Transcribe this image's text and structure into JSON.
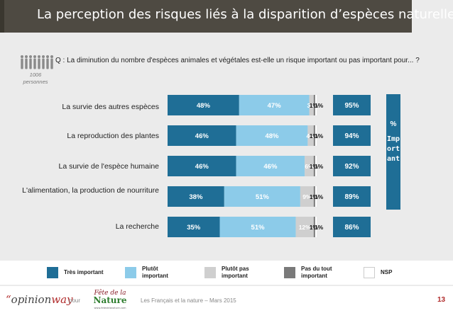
{
  "title": "La perception des risques liés à la disparition d’espèces naturelles",
  "question": "Q : La diminution du nombre d'espèces animales et végétales est-elle un risque important ou pas important pour... ?",
  "sample": {
    "count": "1006",
    "unit": "personnes"
  },
  "important_label": {
    "sign": "%",
    "word": "Important"
  },
  "chart_data": {
    "type": "bar",
    "stacked": true,
    "orientation": "horizontal",
    "xlim": [
      0,
      100
    ],
    "categories": [
      "La survie des autres espèces",
      "La reproduction des plantes",
      "La survie de l'espèce humaine",
      "L'alimentation, la production de nourriture",
      "La recherche"
    ],
    "series": [
      {
        "name": "Très important",
        "values": [
          48,
          46,
          46,
          38,
          35
        ],
        "labels": [
          "48%",
          "46%",
          "46%",
          "38%",
          "35%"
        ],
        "color": "#1f6e96"
      },
      {
        "name": "Plutôt important",
        "values": [
          47,
          48,
          46,
          51,
          51
        ],
        "labels": [
          "47%",
          "48%",
          "46%",
          "51%",
          "51%"
        ],
        "color": "#8ccbe9"
      },
      {
        "name": "Plutôt pas important",
        "values": [
          3,
          4,
          6,
          9,
          12
        ],
        "labels": [
          "3%",
          "4%",
          "6%",
          "9%",
          "12%"
        ],
        "color": "#cfcfcf"
      },
      {
        "name": "Pas du tout important",
        "values": [
          1,
          1,
          1,
          1,
          1
        ],
        "labels": [
          "1%",
          "1%",
          "1%",
          "1%",
          "1%"
        ],
        "color": "#7a7a7a"
      },
      {
        "name": "NSP",
        "values": [
          1,
          1,
          1,
          1,
          1
        ],
        "labels": [
          "1%",
          "1%",
          "1%",
          "1%",
          "1%"
        ],
        "color": "#ffffff"
      }
    ],
    "totals": {
      "name": "Important",
      "values": [
        95,
        94,
        92,
        89,
        86
      ],
      "labels": [
        "95%",
        "94%",
        "92%",
        "89%",
        "86%"
      ],
      "color": "#1f6e96"
    }
  },
  "legend": [
    {
      "line1": "Très important",
      "line2": "",
      "color": "#1f6e96"
    },
    {
      "line1": "Plutôt",
      "line2": "important",
      "color": "#8ccbe9"
    },
    {
      "line1": "Plutôt pas",
      "line2": "important",
      "color": "#cfcfcf"
    },
    {
      "line1": "Pas du tout",
      "line2": "important",
      "color": "#7a7a7a"
    },
    {
      "line1": "NSP",
      "line2": "",
      "color": "#ffffff"
    }
  ],
  "footer": {
    "logo_open": "“",
    "logo_text": "opinion",
    "logo_accent": "way",
    "pour": "pour",
    "partner_line1": "Fête de la",
    "partner_line2": "Nature",
    "partner_url": "www.fetedelanature.com",
    "note": "Les Français et la nature – Mars 2015",
    "page": "13"
  }
}
